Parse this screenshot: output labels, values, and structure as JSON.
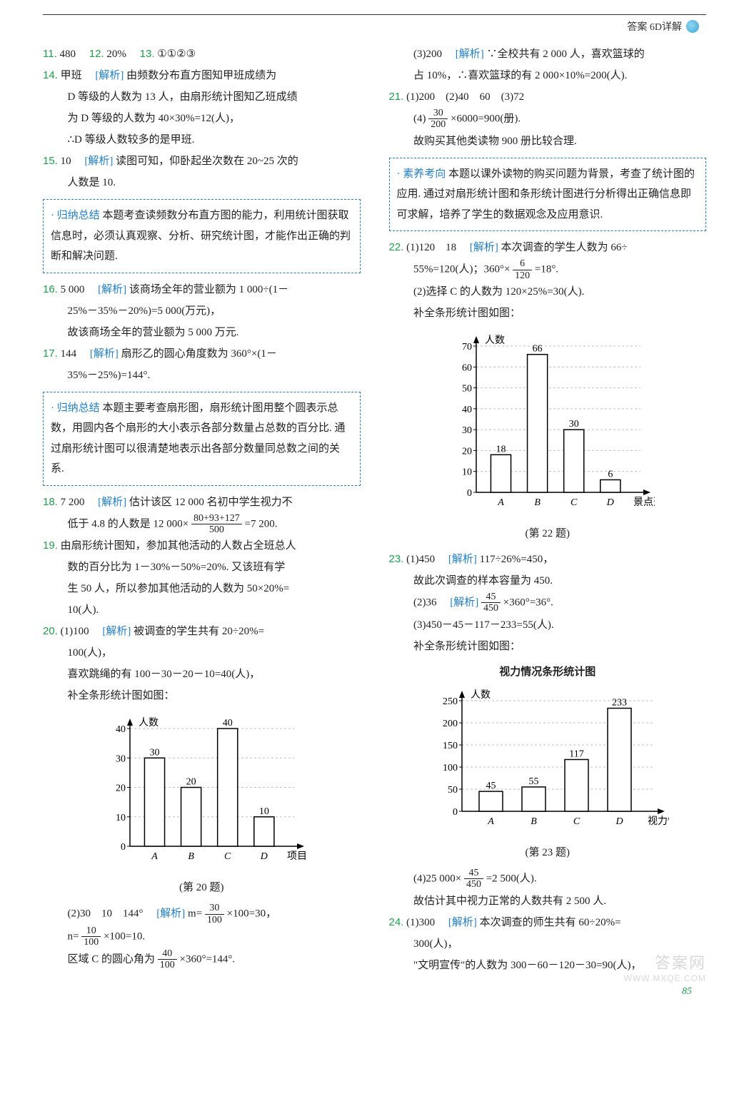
{
  "header": {
    "title": "答案 6D详解"
  },
  "left": {
    "q11": {
      "num": "11.",
      "ans": "480"
    },
    "q12": {
      "num": "12.",
      "ans": "20%"
    },
    "q13": {
      "num": "13.",
      "ans": "①①②③"
    },
    "q14": {
      "num": "14.",
      "ans": "甲班",
      "label": "[解析]",
      "text1": "由频数分布直方图知甲班成绩为",
      "text2": "D 等级的人数为 13 人，由扇形统计图知乙班成绩",
      "text3": "为 D 等级的人数为 40×30%=12(人)，",
      "text4": "∴D 等级人数较多的是甲班."
    },
    "q15": {
      "num": "15.",
      "ans": "10",
      "label": "[解析]",
      "text1": "读图可知，仰卧起坐次数在 20~25 次的",
      "text2": "人数是 10."
    },
    "box1": {
      "title": "· 归纳总结",
      "text": "本题考查读频数分布直方图的能力，利用统计图获取信息时，必须认真观察、分析、研究统计图，才能作出正确的判断和解决问题."
    },
    "q16": {
      "num": "16.",
      "ans": "5 000",
      "label": "[解析]",
      "text1": "该商场全年的营业额为 1 000÷(1－",
      "text2": "25%－35%－20%)=5 000(万元)，",
      "text3": "故该商场全年的营业额为 5 000 万元."
    },
    "q17": {
      "num": "17.",
      "ans": "144",
      "label": "[解析]",
      "text1": "扇形乙的圆心角度数为 360°×(1－",
      "text2": "35%－25%)=144°."
    },
    "box2": {
      "title": "· 归纳总结",
      "text": "本题主要考查扇形图，扇形统计图用整个圆表示总数，用圆内各个扇形的大小表示各部分数量占总数的百分比. 通过扇形统计图可以很清楚地表示出各部分数量同总数之间的关系."
    },
    "q18": {
      "num": "18.",
      "ans": "7 200",
      "label": "[解析]",
      "text1": "估计该区 12 000 名初中学生视力不",
      "text2a": "低于 4.8 的人数是 12 000×",
      "frac18": {
        "n": "80+93+127",
        "d": "500"
      },
      "text2b": "=7 200."
    },
    "q19": {
      "num": "19.",
      "text1": "由扇形统计图知，参加其他活动的人数占全班总人",
      "text2": "数的百分比为 1－30%－50%=20%. 又该班有学",
      "text3": "生 50 人，所以参加其他活动的人数为 50×20%=",
      "text4": "10(人)."
    },
    "q20": {
      "num": "20.",
      "p1a": "(1)100",
      "label": "[解析]",
      "p1b": "被调查的学生共有 20÷20%=",
      "p1c": "100(人)，",
      "p1d": "喜欢跳绳的有 100－30－20－10=40(人)，",
      "p1e": "补全条形统计图如图：",
      "chart": {
        "type": "bar",
        "ylabel": "人数",
        "xlabel": "项目",
        "categories": [
          "A",
          "B",
          "C",
          "D"
        ],
        "values": [
          30,
          20,
          40,
          10
        ],
        "yticks": [
          0,
          10,
          20,
          30,
          40
        ],
        "bar_color": "#ffffff",
        "bar_border": "#000000",
        "axis_color": "#000000",
        "grid_color": "#bfbfbf",
        "grid_dash": "3,3",
        "label_fontsize": 14,
        "caption": "(第 20 题)"
      },
      "p2a": "(2)30　10　144°",
      "label2": "[解析]",
      "p2b_pre": "m=",
      "frac_m": {
        "n": "30",
        "d": "100"
      },
      "p2b_post": "×100=30，",
      "p2c_pre": "n=",
      "frac_n": {
        "n": "10",
        "d": "100"
      },
      "p2c_post": "×100=10.",
      "p2d_pre": "区域 C 的圆心角为",
      "frac_c": {
        "n": "40",
        "d": "100"
      },
      "p2d_post": "×360°=144°."
    }
  },
  "right": {
    "r20_3": {
      "a": "(3)200",
      "label": "[解析]",
      "t1": "∵全校共有 2 000 人，喜欢篮球的",
      "t2": "占 10%，∴喜欢篮球的有 2 000×10%=200(人)."
    },
    "q21": {
      "num": "21.",
      "p1": "(1)200　(2)40　60　(3)72",
      "p4_pre": "(4)",
      "frac21": {
        "n": "30",
        "d": "200"
      },
      "p4_post": "×6000=900(册).",
      "p4b": "故购买其他类读物 900 册比较合理."
    },
    "box3": {
      "title": "· 素养考向",
      "text": "本题以课外读物的购买问题为背景，考查了统计图的应用. 通过对扇形统计图和条形统计图进行分析得出正确信息即可求解，培养了学生的数据观念及应用意识."
    },
    "q22": {
      "num": "22.",
      "p1a": "(1)120　18",
      "label": "[解析]",
      "p1b": "本次调查的学生人数为 66÷",
      "p1c_pre": "55%=120(人)；360°×",
      "frac22": {
        "n": "6",
        "d": "120"
      },
      "p1c_post": "=18°.",
      "p2": "(2)选择 C 的人数为 120×25%=30(人).",
      "p2b": "补全条形统计图如图：",
      "chart": {
        "type": "bar",
        "ylabel": "人数",
        "xlabel": "景点选项",
        "categories": [
          "A",
          "B",
          "C",
          "D"
        ],
        "values": [
          18,
          66,
          30,
          6
        ],
        "value_labels": [
          "18",
          "66",
          "30",
          "6"
        ],
        "yticks": [
          0,
          10,
          20,
          30,
          40,
          50,
          60,
          70
        ],
        "bar_color": "#ffffff",
        "bar_border": "#000000",
        "axis_color": "#000000",
        "grid_color": "#bfbfbf",
        "grid_dash": "3,3",
        "label_fontsize": 14,
        "caption": "(第 22 题)"
      }
    },
    "q23": {
      "num": "23.",
      "p1a": "(1)450",
      "label": "[解析]",
      "p1b": "117÷26%=450，",
      "p1c": "故此次调查的样本容量为 450.",
      "p2a": "(2)36",
      "label2": "[解析]",
      "frac23a": {
        "n": "45",
        "d": "450"
      },
      "p2b": "×360°=36°.",
      "p3": "(3)450－45－117－233=55(人).",
      "p3b": "补全条形统计图如图：",
      "chart_title": "视力情况条形统计图",
      "chart": {
        "type": "bar",
        "ylabel": "人数",
        "xlabel": "视力情况",
        "categories": [
          "A",
          "B",
          "C",
          "D"
        ],
        "values": [
          45,
          55,
          117,
          233
        ],
        "value_labels": [
          "45",
          "55",
          "117",
          "233"
        ],
        "yticks": [
          0,
          50,
          100,
          150,
          200,
          250
        ],
        "bar_color": "#ffffff",
        "bar_border": "#000000",
        "axis_color": "#000000",
        "grid_color": "#bfbfbf",
        "label_fontsize": 14,
        "caption": "(第 23 题)"
      },
      "p4_pre": "(4)25 000×",
      "frac23b": {
        "n": "45",
        "d": "450"
      },
      "p4_post": "=2 500(人).",
      "p4b": "故估计其中视力正常的人数共有 2 500 人."
    },
    "q24": {
      "num": "24.",
      "p1a": "(1)300",
      "label": "[解析]",
      "p1b": "本次调查的师生共有 60÷20%=",
      "p1c": "300(人)，",
      "p1d": "\"文明宣传\"的人数为 300－60－120－30=90(人)，"
    }
  },
  "page_num": "85",
  "watermark": {
    "text": "答案网",
    "url": "WWW.MXQE.COM"
  }
}
